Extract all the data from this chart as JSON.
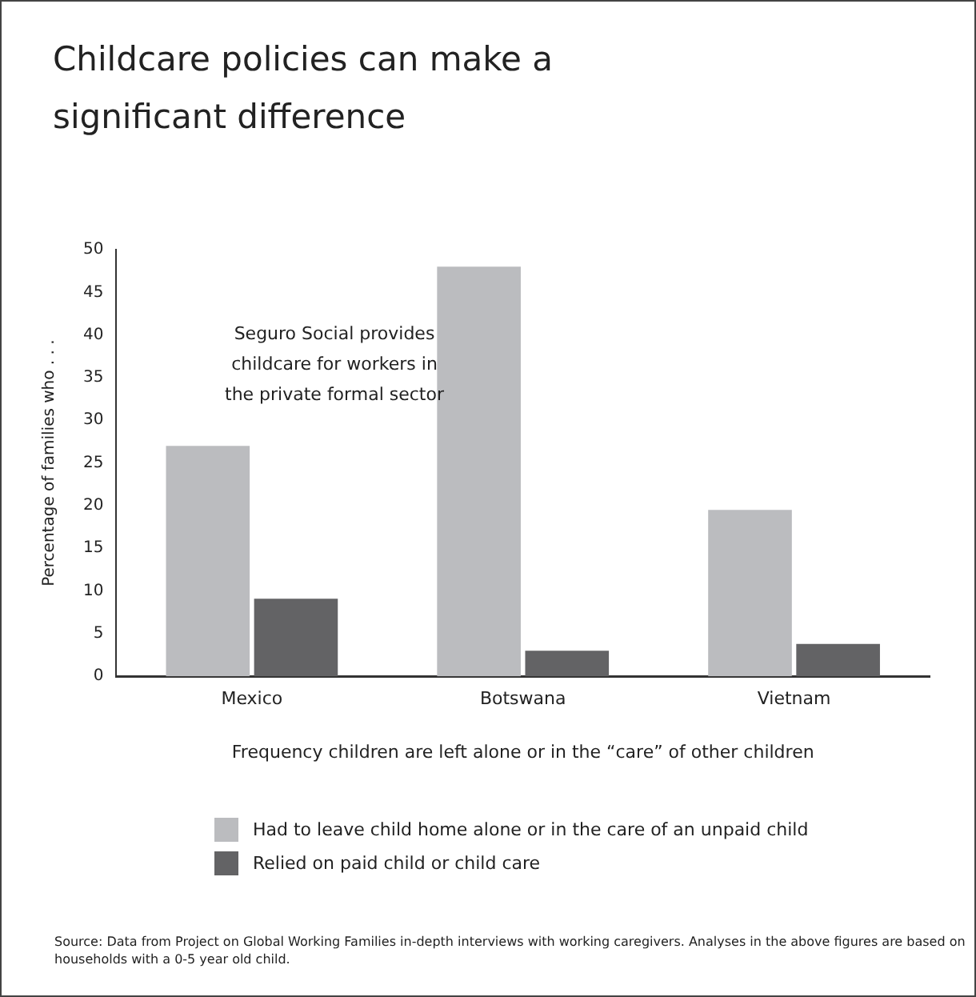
{
  "chart_data": {
    "type": "bar",
    "title": "Childcare policies can make a significant difference",
    "xlabel": "Frequency children are left alone or in the “care” of other children",
    "ylabel": "Percentage of families who . . .",
    "categories": [
      "Mexico",
      "Botswana",
      "Vietnam"
    ],
    "series": [
      {
        "name": "Had to leave child home alone or in the care of an unpaid child",
        "color": "#bbbcbf",
        "values": [
          27,
          48,
          19.5
        ]
      },
      {
        "name": "Relied on paid child or child care",
        "color": "#636365",
        "values": [
          9.1,
          3,
          3.8
        ]
      }
    ],
    "ylim": [
      0,
      50
    ],
    "yticks": [
      0,
      5,
      10,
      15,
      20,
      25,
      30,
      35,
      40,
      45,
      50
    ],
    "grid": false,
    "legend": "bottom",
    "annotations": [
      "Seguro Social provides childcare for workers in the private formal sector",
      "Source: Data from Project on Global Working Families in-depth interviews with working caregivers. Analyses in the above figures are based on households with a 0-5 year  old child."
    ]
  }
}
